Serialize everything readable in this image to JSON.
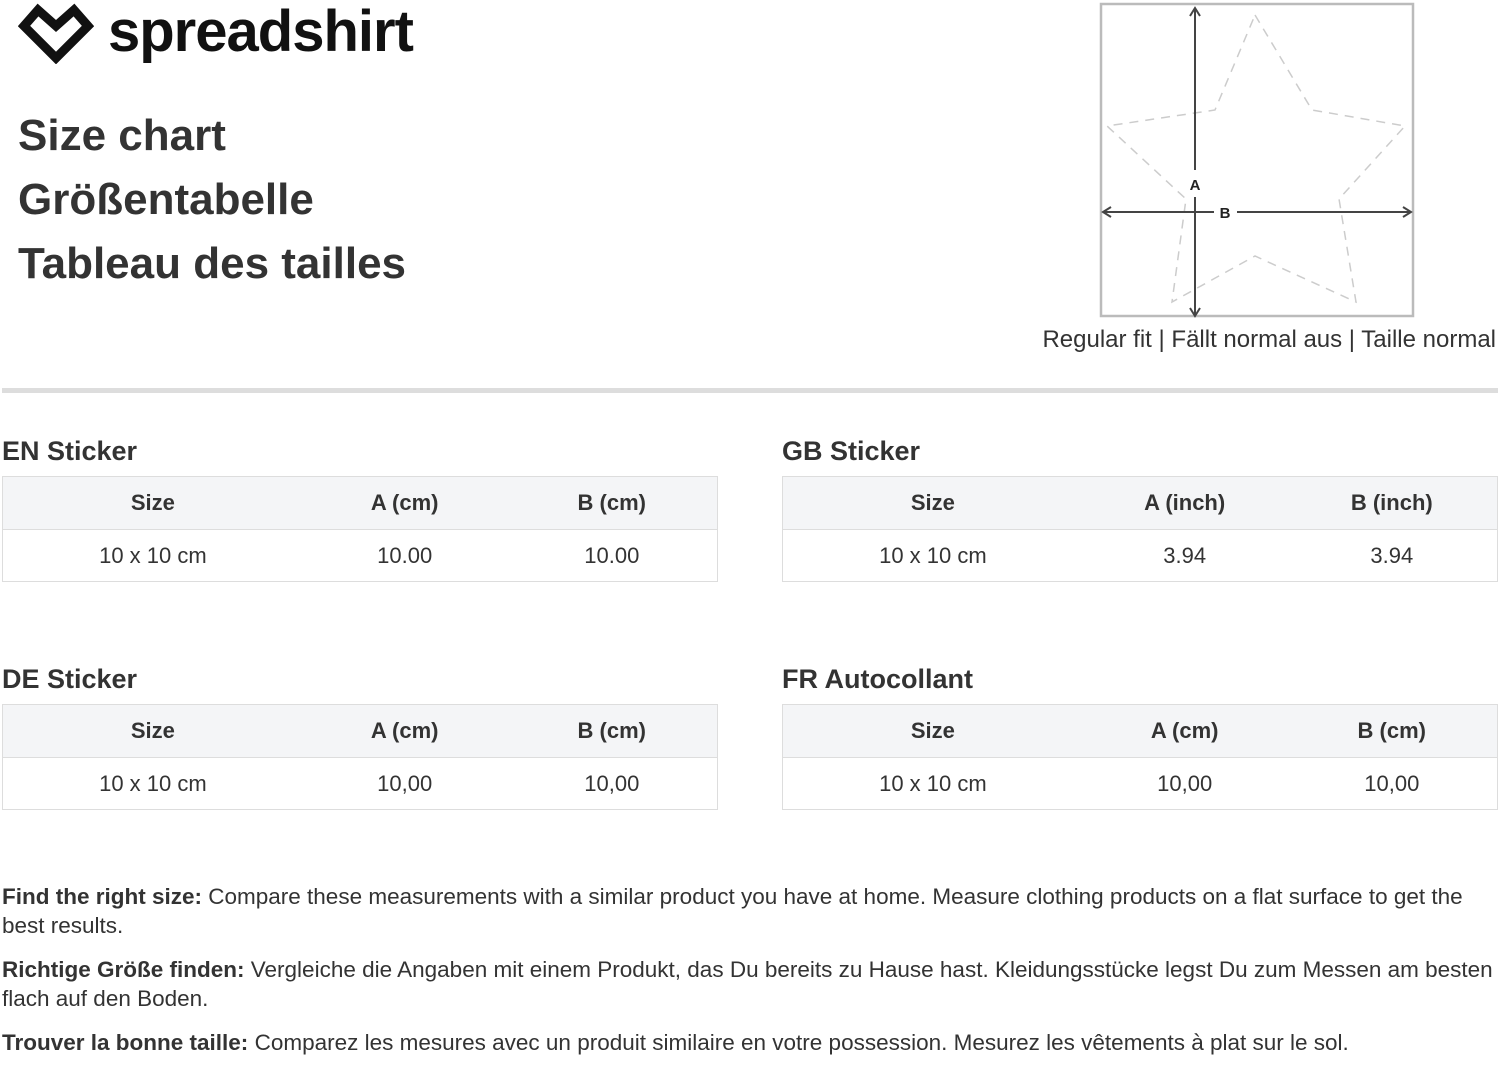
{
  "brand": {
    "name": "spreadshirt",
    "icon": "heart-diamond-logo-icon"
  },
  "titles": [
    "Size chart",
    "Größentabelle",
    "Tableau des tailles"
  ],
  "diagram": {
    "label_a": "A",
    "label_b": "B",
    "fit": "Regular fit | Fällt normal aus | Taille normal"
  },
  "tables": [
    {
      "title": "EN Sticker",
      "headers": [
        "Size",
        "A (cm)",
        "B (cm)"
      ],
      "rows": [
        [
          "10 x 10 cm",
          "10.00",
          "10.00"
        ]
      ]
    },
    {
      "title": "GB Sticker",
      "headers": [
        "Size",
        "A (inch)",
        "B (inch)"
      ],
      "rows": [
        [
          "10 x 10 cm",
          "3.94",
          "3.94"
        ]
      ]
    },
    {
      "title": "DE Sticker",
      "headers": [
        "Size",
        "A (cm)",
        "B (cm)"
      ],
      "rows": [
        [
          "10 x 10 cm",
          "10,00",
          "10,00"
        ]
      ]
    },
    {
      "title": "FR Autocollant",
      "headers": [
        "Size",
        "A (cm)",
        "B (cm)"
      ],
      "rows": [
        [
          "10 x 10 cm",
          "10,00",
          "10,00"
        ]
      ]
    }
  ],
  "notes": [
    {
      "bold": "Find the right size:",
      "text": " Compare these measurements with a similar product you have at home. Measure clothing products on a flat surface to get the best results."
    },
    {
      "bold": "Richtige Größe finden:",
      "text": " Vergleiche die Angaben mit einem Produkt, das Du bereits zu Hause hast. Kleidungsstücke legst Du zum Messen am besten flach auf den Boden."
    },
    {
      "bold": "Trouver la bonne taille:",
      "text": " Comparez les mesures avec un produit similaire en votre possession. Mesurez les vêtements à plat sur le sol."
    }
  ]
}
